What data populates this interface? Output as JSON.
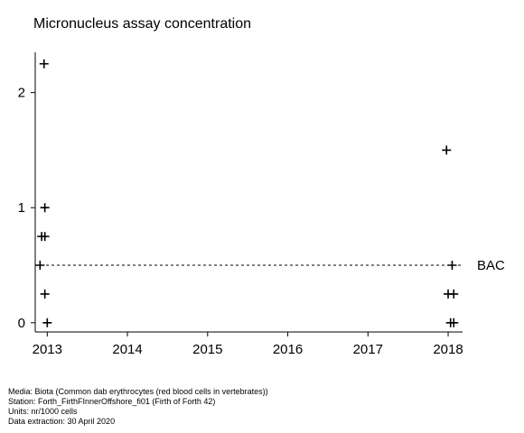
{
  "chart_data": {
    "type": "scatter",
    "title": "Micronucleus assay concentration",
    "xlabel": "",
    "ylabel": "",
    "xlim": [
      2012.85,
      2018.18
    ],
    "ylim": [
      -0.08,
      2.35
    ],
    "x_ticks": [
      2013,
      2014,
      2015,
      2016,
      2017,
      2018
    ],
    "x_tick_labels": [
      "2013",
      "2014",
      "2015",
      "2016",
      "2017",
      "2018"
    ],
    "y_ticks": [
      0,
      1,
      2
    ],
    "y_tick_labels": [
      "0",
      "1",
      "2"
    ],
    "grid": false,
    "marker": "plus",
    "points": [
      {
        "x": 2012.96,
        "y": 2.25
      },
      {
        "x": 2012.97,
        "y": 1.0
      },
      {
        "x": 2012.93,
        "y": 0.75
      },
      {
        "x": 2012.97,
        "y": 0.75
      },
      {
        "x": 2012.91,
        "y": 0.5
      },
      {
        "x": 2012.97,
        "y": 0.25
      },
      {
        "x": 2013.0,
        "y": 0.0
      },
      {
        "x": 2017.98,
        "y": 1.5
      },
      {
        "x": 2018.05,
        "y": 0.5
      },
      {
        "x": 2018.0,
        "y": 0.25
      },
      {
        "x": 2018.07,
        "y": 0.25
      },
      {
        "x": 2018.03,
        "y": 0.0
      },
      {
        "x": 2018.07,
        "y": 0.0
      }
    ],
    "reference_lines": [
      {
        "label": "BAC",
        "y": 0.5,
        "style": "dashed"
      }
    ]
  },
  "footer": {
    "media": "Media: Biota (Common dab erythrocytes (red blood cells in vertebrates))",
    "station": "Station: Forth_FirthFInnerOffshore_fi01 (Firth of Forth 42)",
    "units": "Units:  nr/1000 cells",
    "extraction": "Data extraction: 30 April 2020"
  }
}
